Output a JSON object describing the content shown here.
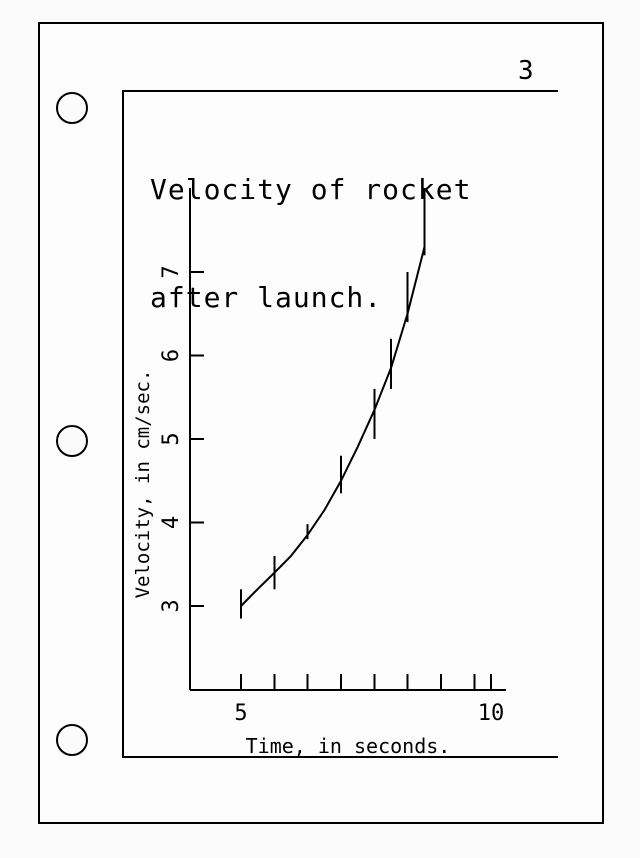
{
  "page": {
    "page_number": "3"
  },
  "chart_data": {
    "type": "line",
    "title_lines": [
      "Velocity of rocket",
      "after launch."
    ],
    "xlabel": "Time, in seconds.",
    "ylabel": "Velocity, in cm/sec.",
    "xlim": [
      4,
      10.3
    ],
    "ylim": [
      2,
      8
    ],
    "x_tick_values": [
      5,
      5.67,
      6.33,
      7,
      7.67,
      8.33,
      9,
      9.67,
      10
    ],
    "x_tick_labels": [
      {
        "value": 5,
        "label": "5"
      },
      {
        "value": 10,
        "label": "10"
      }
    ],
    "y_ticks": [
      {
        "value": 3,
        "label": "3"
      },
      {
        "value": 4,
        "label": "4"
      },
      {
        "value": 5,
        "label": "5"
      },
      {
        "value": 6,
        "label": "6"
      },
      {
        "value": 7,
        "label": "7"
      }
    ],
    "series": [
      {
        "x": [
          5,
          5.33,
          5.67,
          6,
          6.33,
          6.67,
          7,
          7.33,
          7.67,
          8,
          8.33,
          8.67
        ],
        "y": [
          3.0,
          3.2,
          3.4,
          3.6,
          3.85,
          4.15,
          4.5,
          4.9,
          5.35,
          5.85,
          6.5,
          7.3
        ]
      }
    ],
    "error_bars": [
      {
        "x": 5,
        "low": 2.85,
        "high": 3.2
      },
      {
        "x": 5.67,
        "low": 3.2,
        "high": 3.6
      },
      {
        "x": 6.33,
        "low": 3.8,
        "high": 3.98
      },
      {
        "x": 7,
        "low": 4.35,
        "high": 4.8
      },
      {
        "x": 7.67,
        "low": 5.0,
        "high": 5.6
      },
      {
        "x": 8,
        "low": 5.6,
        "high": 6.2
      },
      {
        "x": 8.33,
        "low": 6.4,
        "high": 7.0
      },
      {
        "x": 8.67,
        "low": 7.2,
        "high": 8.0
      }
    ]
  }
}
